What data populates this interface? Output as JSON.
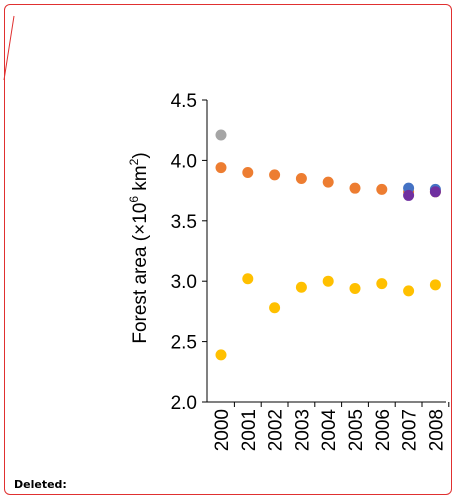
{
  "revision_note": {
    "label": "Deleted:",
    "border_color": "#e03030"
  },
  "chart_data": {
    "type": "scatter",
    "ylabel": "Forest area (×10",
    "ylabel_sup": "6",
    "ylabel_tail": " km",
    "ylabel_sup2": "2",
    "ylabel_end": ")",
    "xlabel": "",
    "categories": [
      "2000",
      "2001",
      "2002",
      "2003",
      "2004",
      "2005",
      "2006",
      "2007",
      "2008"
    ],
    "ylim": [
      2.0,
      4.5
    ],
    "yticks": [
      2.0,
      2.5,
      3.0,
      3.5,
      4.0,
      4.5
    ],
    "ytick_labels": [
      "2.0",
      "2.5",
      "3.0",
      "3.5",
      "4.0",
      "4.5"
    ],
    "grid": false,
    "series": [
      {
        "color": "#ed7d31",
        "points": [
          {
            "x": "2000",
            "y": 3.94
          },
          {
            "x": "2001",
            "y": 3.9
          },
          {
            "x": "2002",
            "y": 3.88
          },
          {
            "x": "2003",
            "y": 3.85
          },
          {
            "x": "2004",
            "y": 3.82
          },
          {
            "x": "2005",
            "y": 3.77
          },
          {
            "x": "2006",
            "y": 3.76
          },
          {
            "x": "2007",
            "y": 3.74
          },
          {
            "x": "2008",
            "y": 3.74
          }
        ]
      },
      {
        "color": "#ffc000",
        "points": [
          {
            "x": "2000",
            "y": 2.39
          },
          {
            "x": "2001",
            "y": 3.02
          },
          {
            "x": "2002",
            "y": 2.78
          },
          {
            "x": "2003",
            "y": 2.95
          },
          {
            "x": "2004",
            "y": 3.0
          },
          {
            "x": "2005",
            "y": 2.94
          },
          {
            "x": "2006",
            "y": 2.98
          },
          {
            "x": "2007",
            "y": 2.92
          },
          {
            "x": "2008",
            "y": 2.97
          }
        ]
      },
      {
        "color": "#a5a5a5",
        "points": [
          {
            "x": "2000",
            "y": 4.21
          }
        ]
      },
      {
        "color": "#4472c4",
        "points": [
          {
            "x": "2007",
            "y": 3.77
          },
          {
            "x": "2008",
            "y": 3.76
          }
        ]
      },
      {
        "color": "#7030a0",
        "points": [
          {
            "x": "2007",
            "y": 3.71
          },
          {
            "x": "2008",
            "y": 3.74
          }
        ]
      }
    ]
  }
}
